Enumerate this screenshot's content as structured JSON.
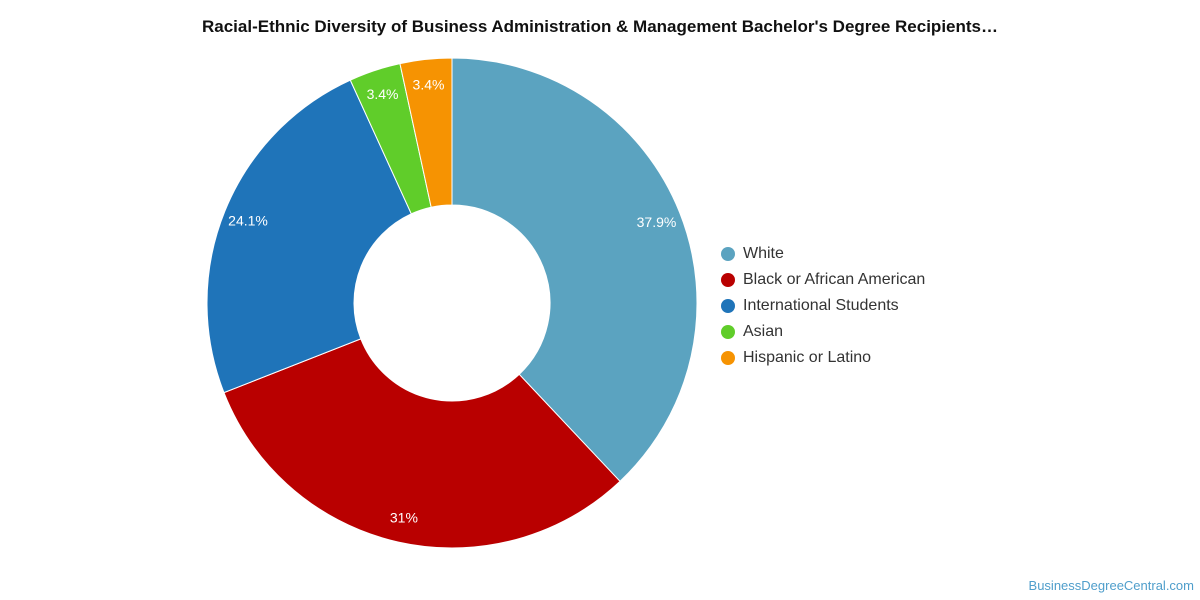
{
  "chart_data": {
    "type": "pie",
    "title": "Racial-Ethnic Diversity of Business Administration & Management Bachelor's Degree Recipients…",
    "donut": true,
    "legend_position": "right",
    "slices": [
      {
        "label": "White",
        "value": 37.9,
        "display": "37.9%",
        "color": "#5ba3c0"
      },
      {
        "label": "Black or African American",
        "value": 31,
        "display": "31%",
        "color": "#b90000"
      },
      {
        "label": "International Students",
        "value": 24.1,
        "display": "24.1%",
        "color": "#1f74b9"
      },
      {
        "label": "Asian",
        "value": 3.4,
        "display": "3.4%",
        "color": "#60cd2a"
      },
      {
        "label": "Hispanic or Latino",
        "value": 3.4,
        "display": "3.4%",
        "color": "#f69302"
      }
    ]
  },
  "watermark": "BusinessDegreeCentral.com"
}
